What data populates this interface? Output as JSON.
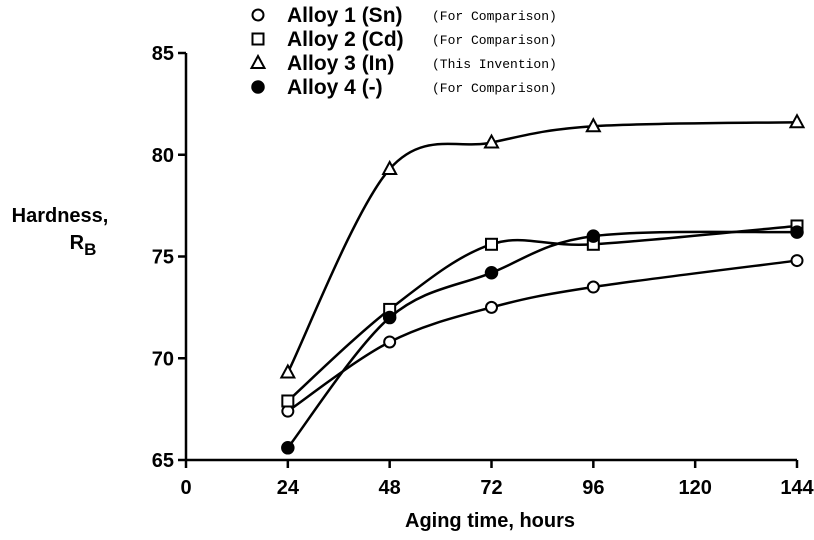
{
  "chart_data": {
    "type": "line",
    "xlabel": "Aging time, hours",
    "ylabel_main": "Hardness,",
    "ylabel_symbol": "R",
    "ylabel_subscript": "B",
    "xlim": [
      0,
      144
    ],
    "ylim": [
      65,
      85
    ],
    "x_ticks": [
      0,
      24,
      48,
      72,
      96,
      120,
      144
    ],
    "y_ticks": [
      65,
      70,
      75,
      80,
      85
    ],
    "grid": false,
    "legend_position": "top-center",
    "series": [
      {
        "name": "Alloy 1 (Sn)",
        "note": "(For Comparison)",
        "marker": "open-circle",
        "x": [
          24,
          48,
          72,
          96,
          144
        ],
        "y": [
          67.4,
          70.8,
          72.5,
          73.5,
          74.8
        ]
      },
      {
        "name": "Alloy 2 (Cd)",
        "note": "(For Comparison)",
        "marker": "open-square",
        "x": [
          24,
          48,
          72,
          96,
          144
        ],
        "y": [
          67.9,
          72.4,
          75.6,
          75.6,
          76.5
        ]
      },
      {
        "name": "Alloy 3 (In)",
        "note": "(This Invention)",
        "marker": "open-triangle",
        "x": [
          24,
          48,
          72,
          96,
          144
        ],
        "y": [
          69.3,
          79.3,
          80.6,
          81.4,
          81.6
        ]
      },
      {
        "name": "Alloy 4 (-)",
        "note": "(For Comparison)",
        "marker": "filled-circle",
        "x": [
          24,
          48,
          72,
          96,
          144
        ],
        "y": [
          65.6,
          72.0,
          74.2,
          76.0,
          76.2
        ]
      }
    ]
  }
}
